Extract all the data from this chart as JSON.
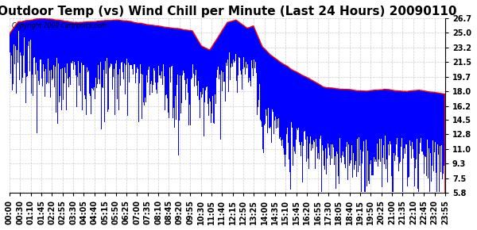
{
  "title": "Outdoor Temp (vs) Wind Chill per Minute (Last 24 Hours) 20090110",
  "copyright_text": "Copyright 2009 Cartronics.com",
  "yticks": [
    5.8,
    7.5,
    9.3,
    11.0,
    12.8,
    14.5,
    16.2,
    18.0,
    19.7,
    21.5,
    23.2,
    25.0,
    26.7
  ],
  "ymin": 5.8,
  "ymax": 26.7,
  "bg_color": "#ffffff",
  "plot_bg_color": "#ffffff",
  "grid_color": "#cccccc",
  "blue_color": "#0000ff",
  "red_color": "#ff0000",
  "title_fontsize": 11,
  "tick_fontsize": 7,
  "xtick_labels": [
    "00:00",
    "00:30",
    "01:10",
    "01:45",
    "02:20",
    "02:55",
    "03:30",
    "04:05",
    "04:40",
    "05:15",
    "05:50",
    "06:25",
    "07:00",
    "07:35",
    "08:10",
    "08:45",
    "09:20",
    "09:55",
    "10:30",
    "11:05",
    "11:40",
    "12:15",
    "12:50",
    "13:25",
    "14:00",
    "14:35",
    "15:10",
    "15:45",
    "16:20",
    "16:55",
    "17:30",
    "18:05",
    "18:40",
    "19:15",
    "19:50",
    "20:25",
    "21:00",
    "21:35",
    "22:10",
    "22:45",
    "23:20",
    "23:55"
  ],
  "n_points": 1440
}
